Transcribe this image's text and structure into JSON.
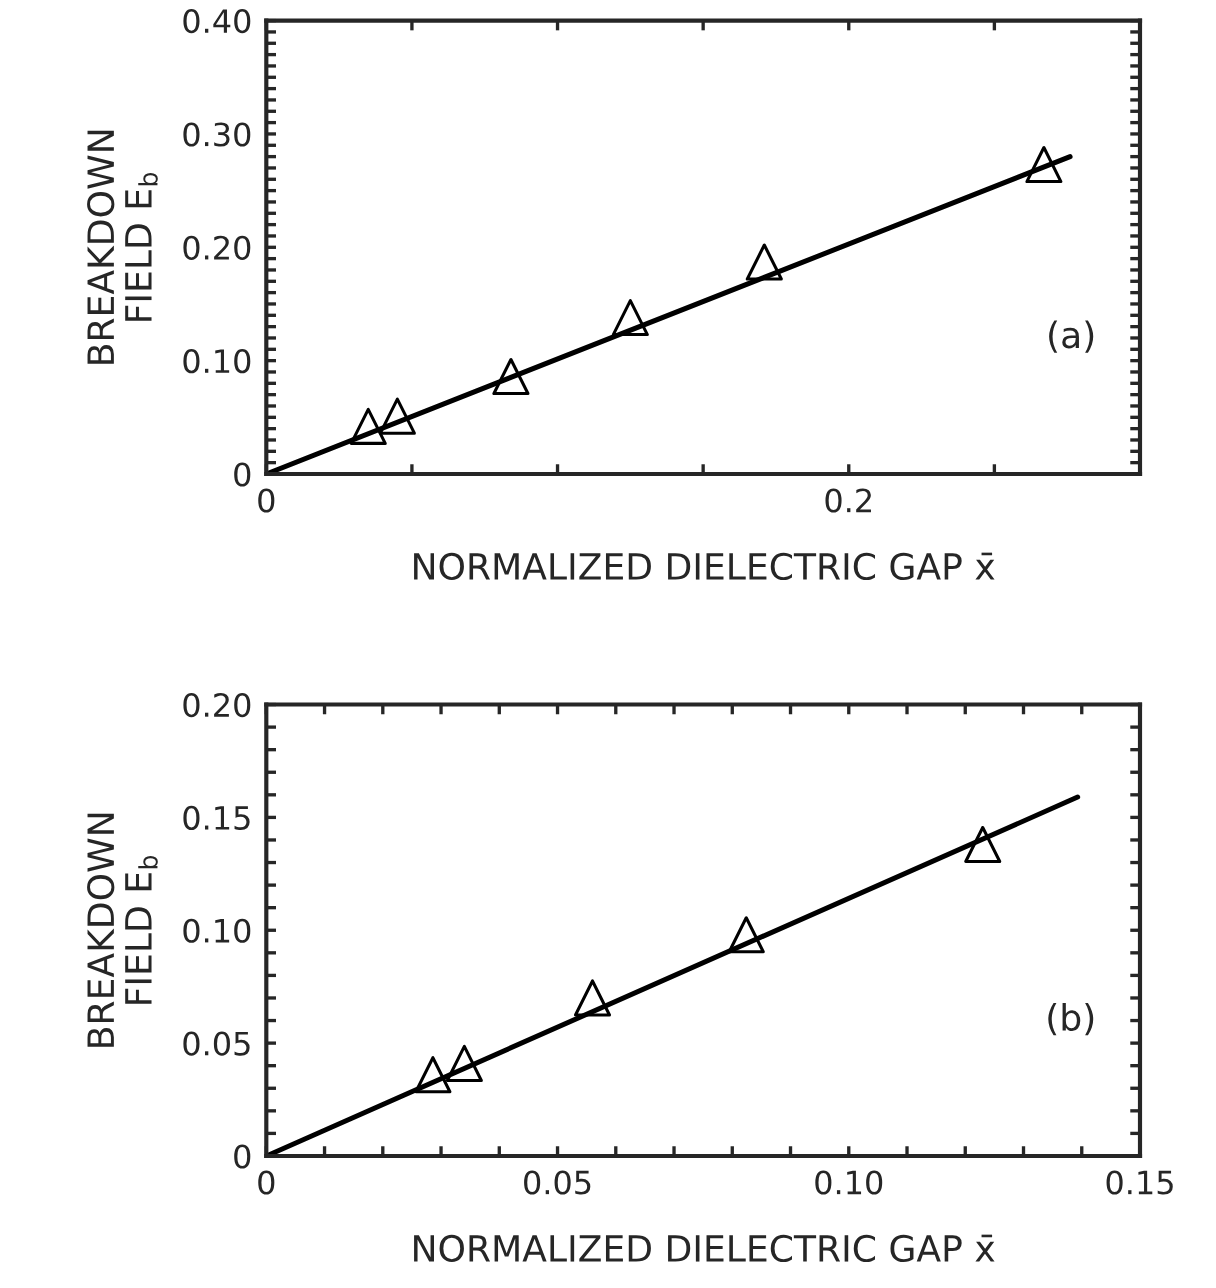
{
  "chart_data": [
    {
      "type": "scatter",
      "xlabel": "NORMALIZED DIELECTRIC GAP x̄",
      "ylabel": "BREAKDOWN\nFIELD E$_{b}$",
      "annotations": [
        "(a)"
      ],
      "marker": "triangle",
      "grid": false,
      "legend": false,
      "xlim": [
        0,
        0.3
      ],
      "ylim": [
        0,
        0.4
      ],
      "xticks": [
        0,
        {
          "value": 0.05,
          "label": null
        },
        {
          "value": 0.1,
          "label": null
        },
        {
          "value": 0.15,
          "label": null
        },
        0.2,
        {
          "value": 0.25,
          "label": null
        }
      ],
      "yticks": [
        0,
        {
          "value": 0.01,
          "label": null
        },
        {
          "value": 0.02,
          "label": null
        },
        {
          "value": 0.03,
          "label": null
        },
        {
          "value": 0.04,
          "label": null
        },
        {
          "value": 0.05,
          "label": null
        },
        {
          "value": 0.06,
          "label": null
        },
        {
          "value": 0.07,
          "label": null
        },
        {
          "value": 0.08,
          "label": null
        },
        {
          "value": 0.09,
          "label": null
        },
        {
          "value": 0.1,
          "label": "0.10"
        },
        {
          "value": 0.11,
          "label": null
        },
        {
          "value": 0.12,
          "label": null
        },
        {
          "value": 0.13,
          "label": null
        },
        {
          "value": 0.14,
          "label": null
        },
        {
          "value": 0.15,
          "label": null
        },
        {
          "value": 0.16,
          "label": null
        },
        {
          "value": 0.17,
          "label": null
        },
        {
          "value": 0.18,
          "label": null
        },
        {
          "value": 0.19,
          "label": null
        },
        {
          "value": 0.2,
          "label": "0.20"
        },
        {
          "value": 0.21,
          "label": null
        },
        {
          "value": 0.22,
          "label": null
        },
        {
          "value": 0.23,
          "label": null
        },
        {
          "value": 0.24,
          "label": null
        },
        {
          "value": 0.25,
          "label": null
        },
        {
          "value": 0.26,
          "label": null
        },
        {
          "value": 0.27,
          "label": null
        },
        {
          "value": 0.28,
          "label": null
        },
        {
          "value": 0.29,
          "label": null
        },
        {
          "value": 0.3,
          "label": "0.30"
        },
        {
          "value": 0.31,
          "label": null
        },
        {
          "value": 0.32,
          "label": null
        },
        {
          "value": 0.33,
          "label": null
        },
        {
          "value": 0.34,
          "label": null
        },
        {
          "value": 0.35,
          "label": null
        },
        {
          "value": 0.36,
          "label": null
        },
        {
          "value": 0.37,
          "label": null
        },
        {
          "value": 0.38,
          "label": null
        },
        {
          "value": 0.39,
          "label": null
        },
        {
          "value": 0.4,
          "label": "0.40"
        }
      ],
      "series": [
        {
          "color": "#000000",
          "x": [
            0.035,
            0.045,
            0.084,
            0.125,
            0.171,
            0.267
          ],
          "values": [
            0.042,
            0.051,
            0.086,
            0.138,
            0.187,
            0.273
          ]
        },
        {
          "type": "line",
          "color": "#000000",
          "marker": "none",
          "x": [
            0,
            0.276
          ],
          "values": [
            0,
            0.28
          ]
        }
      ]
    },
    {
      "type": "scatter",
      "xlabel": "NORMALIZED DIELECTRIC GAP x̄",
      "ylabel": "BREAKDOWN\nFIELD E$_{b}$",
      "annotations": [
        "(b)"
      ],
      "marker": "triangle",
      "grid": false,
      "legend": false,
      "xlim": [
        0,
        0.15
      ],
      "ylim": [
        0,
        0.2
      ],
      "xticks": [
        0,
        {
          "value": 0.01,
          "label": null
        },
        {
          "value": 0.02,
          "label": null
        },
        {
          "value": 0.03,
          "label": null
        },
        {
          "value": 0.04,
          "label": null
        },
        0.05,
        {
          "value": 0.06,
          "label": null
        },
        {
          "value": 0.07,
          "label": null
        },
        {
          "value": 0.08,
          "label": null
        },
        {
          "value": 0.09,
          "label": null
        },
        {
          "value": 0.1,
          "label": "0.10"
        },
        {
          "value": 0.11,
          "label": null
        },
        {
          "value": 0.12,
          "label": null
        },
        {
          "value": 0.13,
          "label": null
        },
        {
          "value": 0.14,
          "label": null
        },
        0.15
      ],
      "yticks": [
        0,
        {
          "value": 0.01,
          "label": null
        },
        {
          "value": 0.02,
          "label": null
        },
        {
          "value": 0.03,
          "label": null
        },
        {
          "value": 0.04,
          "label": null
        },
        0.05,
        {
          "value": 0.06,
          "label": null
        },
        {
          "value": 0.07,
          "label": null
        },
        {
          "value": 0.08,
          "label": null
        },
        {
          "value": 0.09,
          "label": null
        },
        {
          "value": 0.1,
          "label": "0.10"
        },
        {
          "value": 0.11,
          "label": null
        },
        {
          "value": 0.12,
          "label": null
        },
        {
          "value": 0.13,
          "label": null
        },
        {
          "value": 0.14,
          "label": null
        },
        0.15,
        {
          "value": 0.16,
          "label": null
        },
        {
          "value": 0.17,
          "label": null
        },
        {
          "value": 0.18,
          "label": null
        },
        {
          "value": 0.19,
          "label": null
        },
        {
          "value": 0.2,
          "label": "0.20"
        }
      ],
      "series": [
        {
          "color": "#000000",
          "x": [
            0.0286,
            0.034,
            0.056,
            0.0824,
            0.123
          ],
          "values": [
            0.036,
            0.041,
            0.07,
            0.098,
            0.138
          ]
        },
        {
          "type": "line",
          "color": "#000000",
          "marker": "none",
          "x": [
            0,
            0.1393
          ],
          "values": [
            0,
            0.159
          ]
        }
      ]
    }
  ]
}
